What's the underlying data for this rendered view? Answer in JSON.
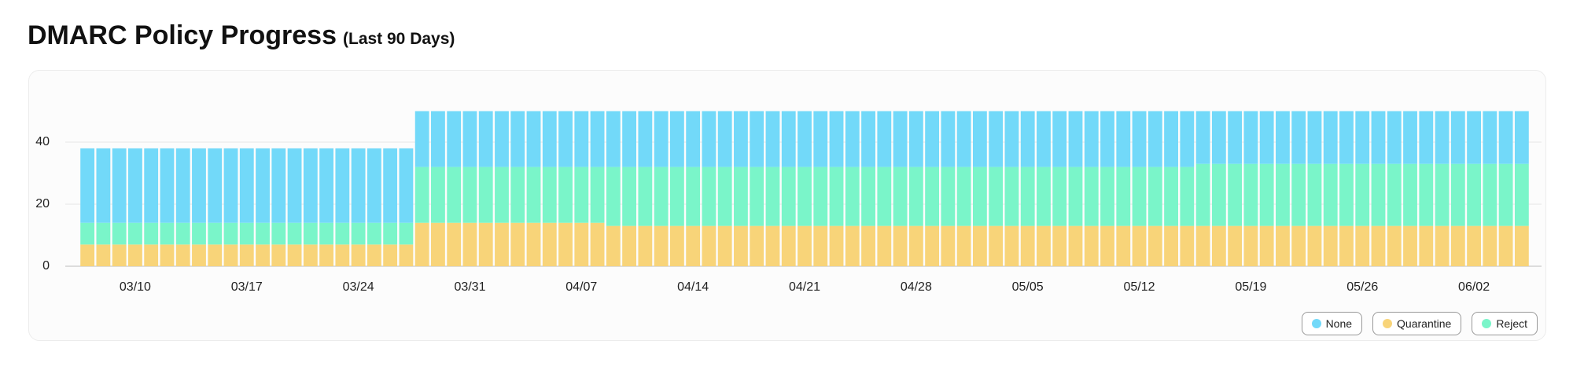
{
  "chart_data": {
    "type": "stacked-bar",
    "title": "DMARC Policy Progress",
    "subtitle": "(Last 90 Days)",
    "categories": [
      null,
      null,
      null,
      "03/10",
      null,
      null,
      null,
      null,
      null,
      null,
      "03/17",
      null,
      null,
      null,
      null,
      null,
      null,
      "03/24",
      null,
      null,
      null,
      null,
      null,
      null,
      "03/31",
      null,
      null,
      null,
      null,
      null,
      null,
      "04/07",
      null,
      null,
      null,
      null,
      null,
      null,
      "04/14",
      null,
      null,
      null,
      null,
      null,
      null,
      "04/21",
      null,
      null,
      null,
      null,
      null,
      null,
      "04/28",
      null,
      null,
      null,
      null,
      null,
      null,
      "05/05",
      null,
      null,
      null,
      null,
      null,
      null,
      "05/12",
      null,
      null,
      null,
      null,
      null,
      null,
      "05/19",
      null,
      null,
      null,
      null,
      null,
      null,
      "05/26",
      null,
      null,
      null,
      null,
      null,
      null,
      "06/02",
      null,
      null,
      null
    ],
    "series": [
      {
        "name": "Quarantine",
        "color": "#f8d479",
        "values": [
          7,
          7,
          7,
          7,
          7,
          7,
          7,
          7,
          7,
          7,
          7,
          7,
          7,
          7,
          7,
          7,
          7,
          7,
          7,
          7,
          7,
          14,
          14,
          14,
          14,
          14,
          14,
          14,
          14,
          14,
          14,
          14,
          14,
          13,
          13,
          13,
          13,
          13,
          13,
          13,
          13,
          13,
          13,
          13,
          13,
          13,
          13,
          13,
          13,
          13,
          13,
          13,
          13,
          13,
          13,
          13,
          13,
          13,
          13,
          13,
          13,
          13,
          13,
          13,
          13,
          13,
          13,
          13,
          13,
          13,
          13,
          13,
          13,
          13,
          13,
          13,
          13,
          13,
          13,
          13,
          13,
          13,
          13,
          13,
          13,
          13,
          13,
          13,
          13,
          13,
          13
        ]
      },
      {
        "name": "Reject",
        "color": "#7af5c9",
        "values": [
          7,
          7,
          7,
          7,
          7,
          7,
          7,
          7,
          7,
          7,
          7,
          7,
          7,
          7,
          7,
          7,
          7,
          7,
          7,
          7,
          7,
          18,
          18,
          18,
          18,
          18,
          18,
          18,
          18,
          18,
          18,
          18,
          18,
          19,
          19,
          19,
          19,
          19,
          19,
          19,
          19,
          19,
          19,
          19,
          19,
          19,
          19,
          19,
          19,
          19,
          19,
          19,
          19,
          19,
          19,
          19,
          19,
          19,
          19,
          19,
          19,
          19,
          19,
          19,
          19,
          19,
          19,
          19,
          19,
          19,
          20,
          20,
          20,
          20,
          20,
          20,
          20,
          20,
          20,
          20,
          20,
          20,
          20,
          20,
          20,
          20,
          20,
          20,
          20,
          20,
          20
        ]
      },
      {
        "name": "None",
        "color": "#72d9f9",
        "values": [
          24,
          24,
          24,
          24,
          24,
          24,
          24,
          24,
          24,
          24,
          24,
          24,
          24,
          24,
          24,
          24,
          24,
          24,
          24,
          24,
          24,
          18,
          18,
          18,
          18,
          18,
          18,
          18,
          18,
          18,
          18,
          18,
          18,
          18,
          18,
          18,
          18,
          18,
          18,
          18,
          18,
          18,
          18,
          18,
          18,
          18,
          18,
          18,
          18,
          18,
          18,
          18,
          18,
          18,
          18,
          18,
          18,
          18,
          18,
          18,
          18,
          18,
          18,
          18,
          18,
          18,
          18,
          18,
          18,
          18,
          17,
          17,
          17,
          17,
          17,
          17,
          17,
          17,
          17,
          17,
          17,
          17,
          17,
          17,
          17,
          17,
          17,
          17,
          17,
          17,
          17
        ]
      }
    ],
    "legend_order": [
      "None",
      "Quarantine",
      "Reject"
    ],
    "ylim": [
      0,
      60
    ],
    "yticks": [
      0,
      20,
      40
    ],
    "grid": true,
    "legend": "bottom-right"
  }
}
